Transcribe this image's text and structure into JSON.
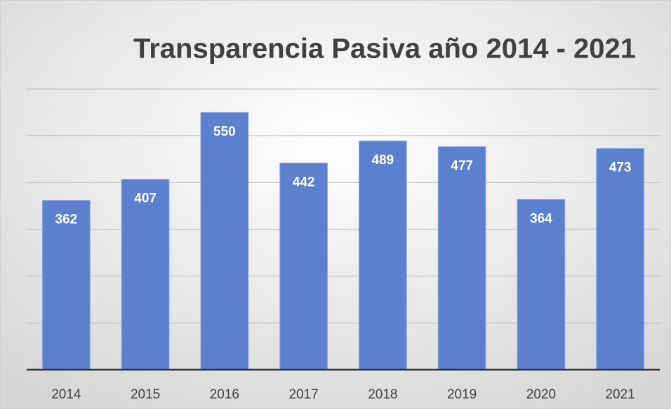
{
  "chart_data": {
    "type": "bar",
    "title": "Transparencia Pasiva año 2014 - 2021",
    "categories": [
      "2014",
      "2015",
      "2016",
      "2017",
      "2018",
      "2019",
      "2020",
      "2021"
    ],
    "values": [
      362,
      407,
      550,
      442,
      489,
      477,
      364,
      473
    ],
    "color": "#5b80cd",
    "ylim": [
      0,
      600
    ],
    "yticks": [
      0,
      100,
      200,
      300,
      400,
      500,
      600
    ],
    "grid": true
  }
}
